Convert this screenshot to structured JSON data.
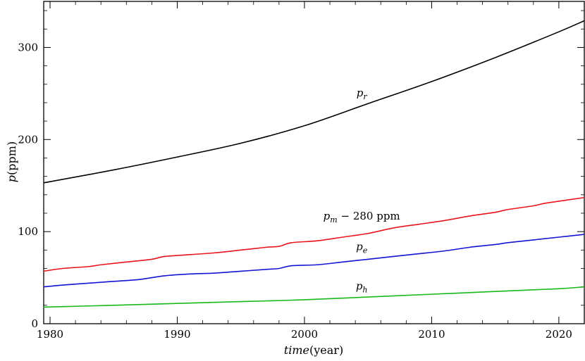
{
  "chart_data": {
    "type": "line",
    "xlabel": "time(year)",
    "ylabel": "p(ppm)",
    "xlim": [
      1979.5,
      2022
    ],
    "ylim": [
      0,
      350
    ],
    "xticks": [
      1980,
      1990,
      2000,
      2010,
      2020
    ],
    "yticks": [
      0,
      100,
      200,
      300
    ],
    "grid": false,
    "series": [
      {
        "name": "p_r",
        "label": "pr",
        "color": "#000000",
        "x": [
          1979.5,
          1985,
          1990,
          1995,
          2000,
          2005,
          2010,
          2015,
          2020,
          2022
        ],
        "y": [
          153,
          167,
          181,
          196,
          215,
          239,
          263,
          289,
          317,
          329
        ]
      },
      {
        "name": "p_m - 280 ppm",
        "label": "pm − 280 ppm",
        "color": "#e8141b",
        "x": [
          1979.5,
          1981,
          1983,
          1984,
          1986,
          1988,
          1989,
          1991,
          1993,
          1995,
          1997,
          1998,
          1999,
          2001,
          2003,
          2005,
          2007,
          2009,
          2011,
          2013,
          2015,
          2016,
          2018,
          2019,
          2021,
          2022
        ],
        "y": [
          57,
          60,
          62,
          64,
          67,
          70,
          73,
          75,
          77,
          80,
          83,
          84,
          88,
          90,
          94,
          98,
          104,
          108,
          112,
          117,
          121,
          124,
          128,
          131,
          135,
          137
        ]
      },
      {
        "name": "p_e",
        "label": "pe",
        "color": "#1414d2",
        "x": [
          1979.5,
          1981,
          1983,
          1985,
          1987,
          1989,
          1991,
          1993,
          1995,
          1997,
          1998,
          1999,
          2001,
          2003,
          2005,
          2007,
          2009,
          2011,
          2013,
          2015,
          2016,
          2018,
          2020,
          2022
        ],
        "y": [
          40,
          42,
          44,
          46,
          48,
          52,
          54,
          55,
          57,
          59,
          60,
          63,
          64,
          67,
          70,
          73,
          76,
          79,
          83,
          86,
          88,
          91,
          94,
          97
        ]
      },
      {
        "name": "p_h",
        "label": "ph",
        "color": "#18b818",
        "x": [
          1979.5,
          1985,
          1990,
          1995,
          2000,
          2005,
          2010,
          2015,
          2020,
          2022
        ],
        "y": [
          18,
          20,
          22,
          24,
          26,
          29,
          32,
          35,
          38,
          40
        ]
      }
    ],
    "annotations": [
      {
        "text": "pr",
        "x": 2004.5,
        "y": 247
      },
      {
        "text": "pm − 280 ppm",
        "x": 2004.5,
        "y": 113
      },
      {
        "text": "pe",
        "x": 2004.5,
        "y": 80
      },
      {
        "text": "ph",
        "x": 2004.5,
        "y": 37
      }
    ]
  }
}
